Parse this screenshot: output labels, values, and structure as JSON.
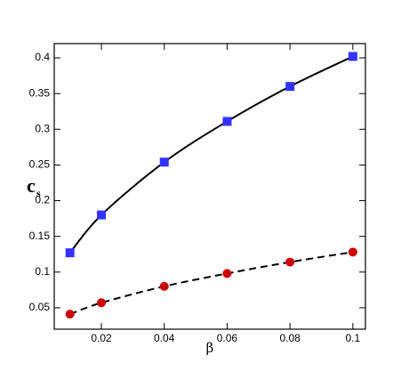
{
  "chart_data": {
    "type": "line",
    "xlabel": "β",
    "ylabel": "c",
    "ylabel_sub": "s",
    "xlim": [
      0.005,
      0.104
    ],
    "ylim": [
      0.02,
      0.42
    ],
    "xticks": [
      0.02,
      0.04,
      0.06,
      0.08,
      0.1
    ],
    "yticks": [
      0.05,
      0.1,
      0.15,
      0.2,
      0.25,
      0.3,
      0.35,
      0.4
    ],
    "series": [
      {
        "color": "#3333ff",
        "marker": "square",
        "line_style": "solid",
        "x": [
          0.01,
          0.02,
          0.04,
          0.06,
          0.08,
          0.1
        ],
        "values": [
          0.127,
          0.18,
          0.254,
          0.311,
          0.36,
          0.402
        ]
      },
      {
        "color": "#cc0000",
        "marker": "circle",
        "line_style": "dashed",
        "x": [
          0.01,
          0.02,
          0.04,
          0.06,
          0.08,
          0.1
        ],
        "values": [
          0.041,
          0.057,
          0.08,
          0.098,
          0.114,
          0.128
        ]
      }
    ]
  }
}
